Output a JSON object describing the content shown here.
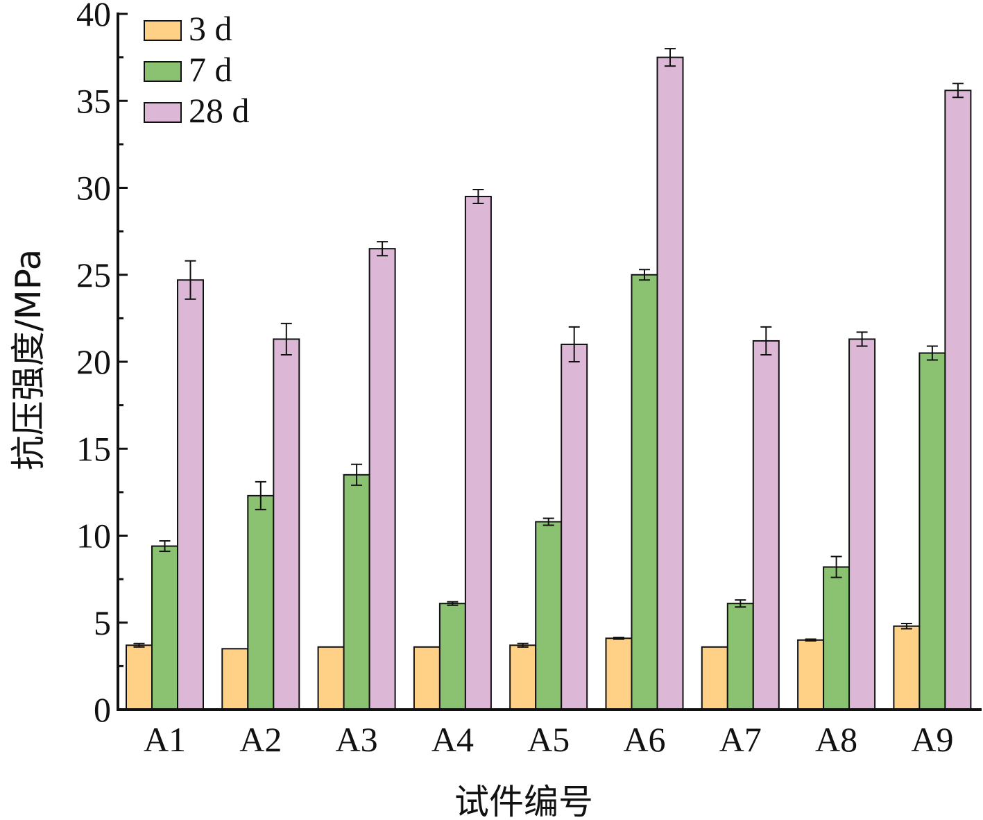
{
  "chart_data": {
    "type": "bar",
    "title": "",
    "xlabel": "试件编号",
    "ylabel": "抗压强度/MPa",
    "ylim": [
      0,
      40
    ],
    "yticks": [
      "0",
      "5",
      "10",
      "15",
      "20",
      "25",
      "30",
      "35",
      "40"
    ],
    "categories": [
      "A1",
      "A2",
      "A3",
      "A4",
      "A5",
      "A6",
      "A7",
      "A8",
      "A9"
    ],
    "series": [
      {
        "name": "3 d",
        "color": "#FFD186",
        "values": [
          3.7,
          3.5,
          3.6,
          3.6,
          3.7,
          4.1,
          3.6,
          4.0,
          4.8
        ],
        "errors": [
          0.1,
          0.0,
          0.0,
          0.0,
          0.1,
          0.05,
          0.0,
          0.05,
          0.15
        ]
      },
      {
        "name": "7 d",
        "color": "#8BC271",
        "values": [
          9.4,
          12.3,
          13.5,
          6.1,
          10.8,
          25.0,
          6.1,
          8.2,
          20.5
        ],
        "errors": [
          0.3,
          0.8,
          0.6,
          0.1,
          0.2,
          0.3,
          0.2,
          0.6,
          0.4
        ]
      },
      {
        "name": "28 d",
        "color": "#DDB8D6",
        "values": [
          24.7,
          21.3,
          26.5,
          29.5,
          21.0,
          37.5,
          21.2,
          21.3,
          35.6
        ],
        "errors": [
          1.1,
          0.9,
          0.4,
          0.4,
          1.0,
          0.5,
          0.8,
          0.4,
          0.4
        ]
      }
    ],
    "legend": "top-left",
    "grid": false
  }
}
